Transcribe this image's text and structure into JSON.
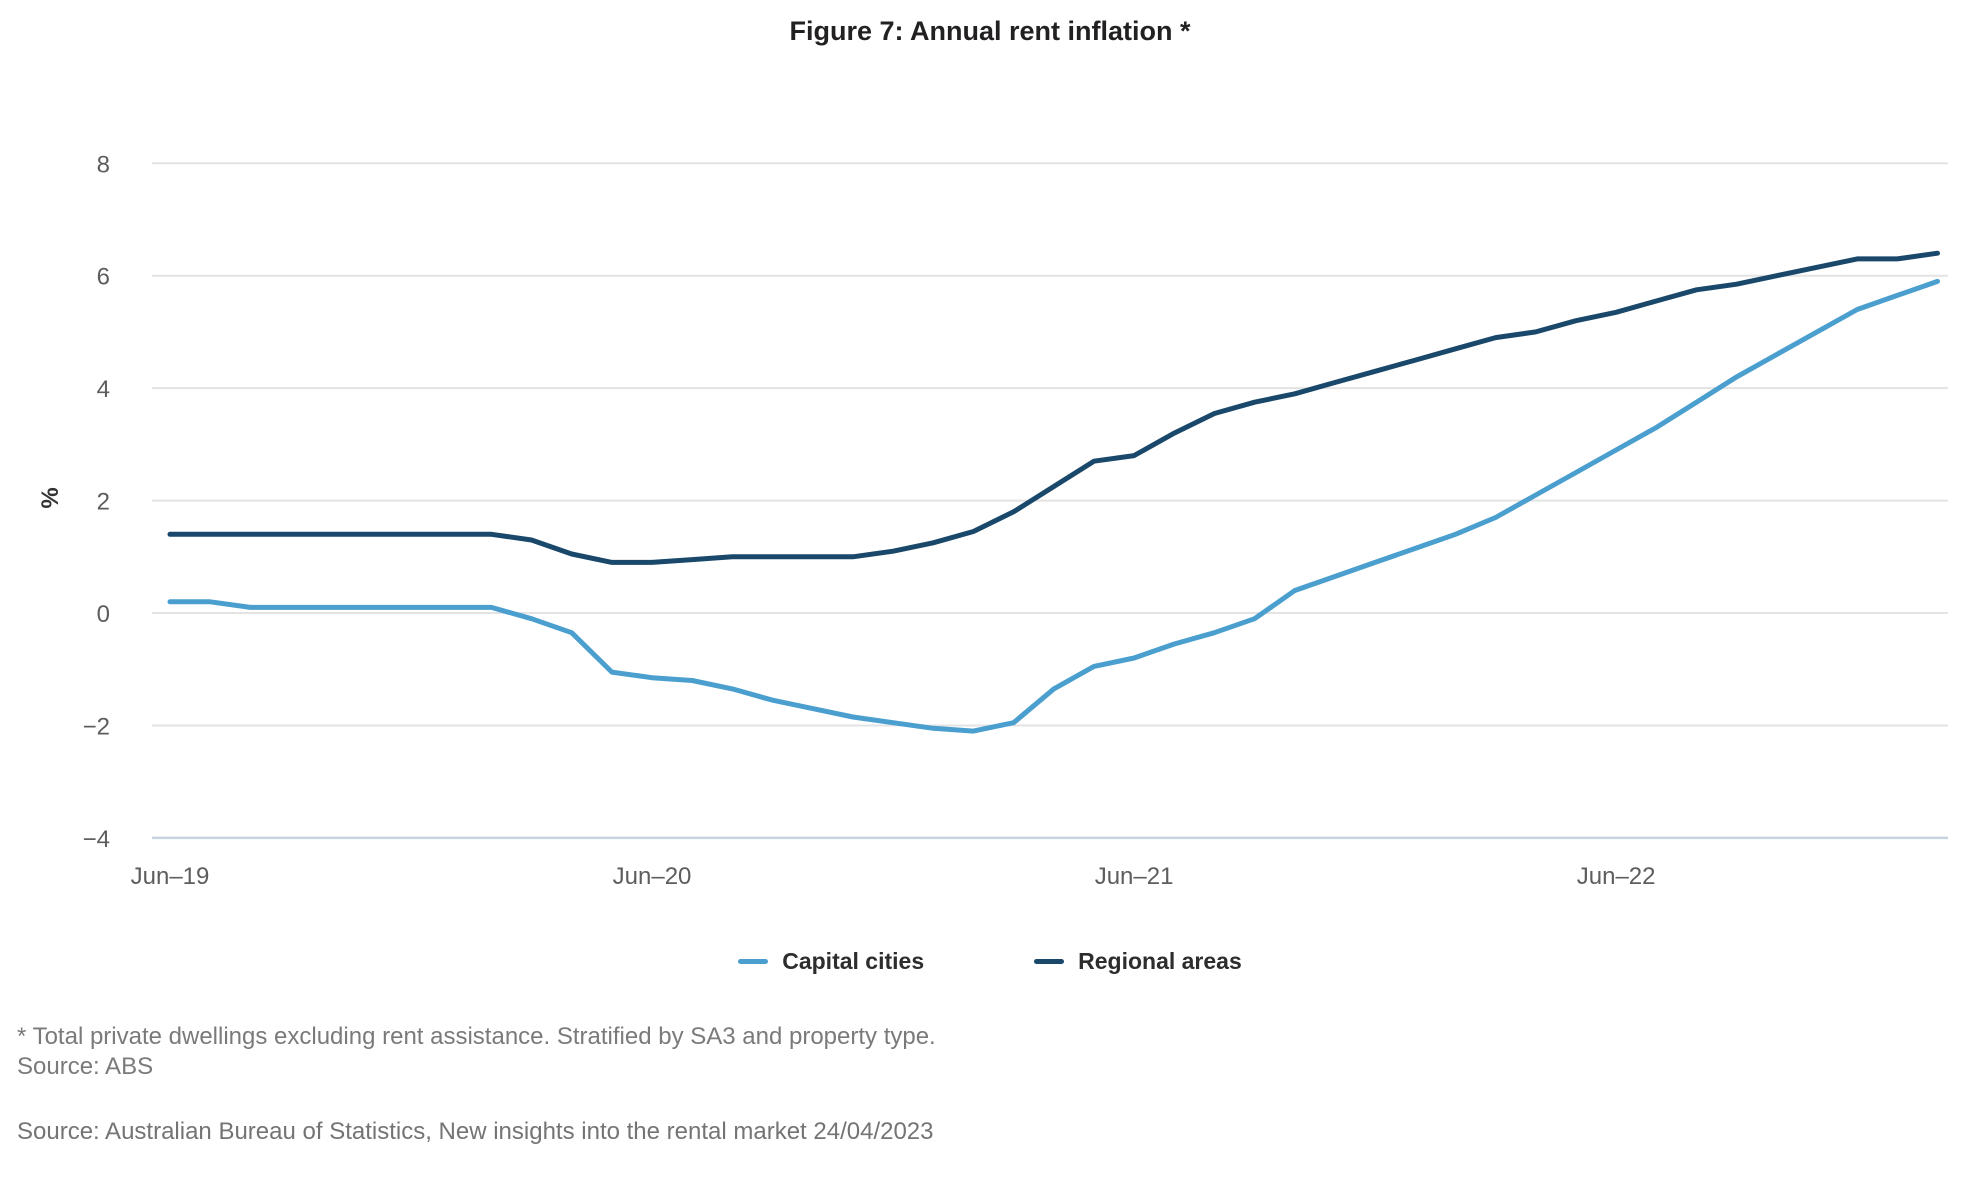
{
  "figure": {
    "title": "Figure 7: Annual rent inflation *",
    "footnote_line1": "* Total private dwellings excluding rent assistance. Stratified by SA3 and property type.",
    "footnote_line2": "Source: ABS",
    "source_line": "Source: Australian Bureau of Statistics, New insights into the rental market 24/04/2023"
  },
  "colors": {
    "capital_cities": "#4a9fcf",
    "regional_areas": "#1a486b",
    "gridline": "#e3e3e3",
    "axis_baseline": "#c9d3df",
    "tick_text": "#5d5d5d",
    "ylabel_text": "#333333"
  },
  "chart_data": {
    "type": "line",
    "title": "Figure 7: Annual rent inflation *",
    "xlabel": "",
    "ylabel": "%",
    "ylim": [
      -4,
      8
    ],
    "y_ticks": [
      8,
      6,
      4,
      2,
      0,
      -2,
      -4
    ],
    "y_tick_labels": [
      "8",
      "6",
      "4",
      "2",
      "0",
      "−2",
      "−4"
    ],
    "x_tick_labels": [
      "Jun–19",
      "Jun–20",
      "Jun–21",
      "Jun–22"
    ],
    "x_tick_month_indices": [
      0,
      12,
      24,
      36
    ],
    "grid": "horizontal",
    "legend_position": "bottom",
    "x": [
      "Jun-19",
      "Jul-19",
      "Aug-19",
      "Sep-19",
      "Oct-19",
      "Nov-19",
      "Dec-19",
      "Jan-20",
      "Feb-20",
      "Mar-20",
      "Apr-20",
      "May-20",
      "Jun-20",
      "Jul-20",
      "Aug-20",
      "Sep-20",
      "Oct-20",
      "Nov-20",
      "Dec-20",
      "Jan-21",
      "Feb-21",
      "Mar-21",
      "Apr-21",
      "May-21",
      "Jun-21",
      "Jul-21",
      "Aug-21",
      "Sep-21",
      "Oct-21",
      "Nov-21",
      "Dec-21",
      "Jan-22",
      "Feb-22",
      "Mar-22",
      "Apr-22",
      "May-22",
      "Jun-22",
      "Jul-22",
      "Aug-22",
      "Sep-22",
      "Oct-22",
      "Nov-22",
      "Dec-22",
      "Jan-23",
      "Feb-23"
    ],
    "series": [
      {
        "name": "Capital cities",
        "color": "#4a9fcf",
        "values": [
          0.2,
          0.2,
          0.1,
          0.1,
          0.1,
          0.1,
          0.1,
          0.1,
          0.1,
          -0.1,
          -0.35,
          -1.05,
          -1.15,
          -1.2,
          -1.35,
          -1.55,
          -1.7,
          -1.85,
          -1.95,
          -2.05,
          -2.1,
          -1.95,
          -1.35,
          -0.95,
          -0.8,
          -0.55,
          -0.35,
          -0.1,
          0.4,
          0.65,
          0.9,
          1.15,
          1.4,
          1.7,
          2.1,
          2.5,
          2.9,
          3.3,
          3.75,
          4.2,
          4.6,
          5.0,
          5.4,
          5.65,
          5.9
        ]
      },
      {
        "name": "Regional areas",
        "color": "#1a486b",
        "values": [
          1.4,
          1.4,
          1.4,
          1.4,
          1.4,
          1.4,
          1.4,
          1.4,
          1.4,
          1.3,
          1.05,
          0.9,
          0.9,
          0.95,
          1.0,
          1.0,
          1.0,
          1.0,
          1.1,
          1.25,
          1.45,
          1.8,
          2.25,
          2.7,
          2.8,
          3.2,
          3.55,
          3.75,
          3.9,
          4.1,
          4.3,
          4.5,
          4.7,
          4.9,
          5.0,
          5.2,
          5.35,
          5.55,
          5.75,
          5.85,
          6.0,
          6.15,
          6.3,
          6.3,
          6.4
        ]
      }
    ]
  }
}
